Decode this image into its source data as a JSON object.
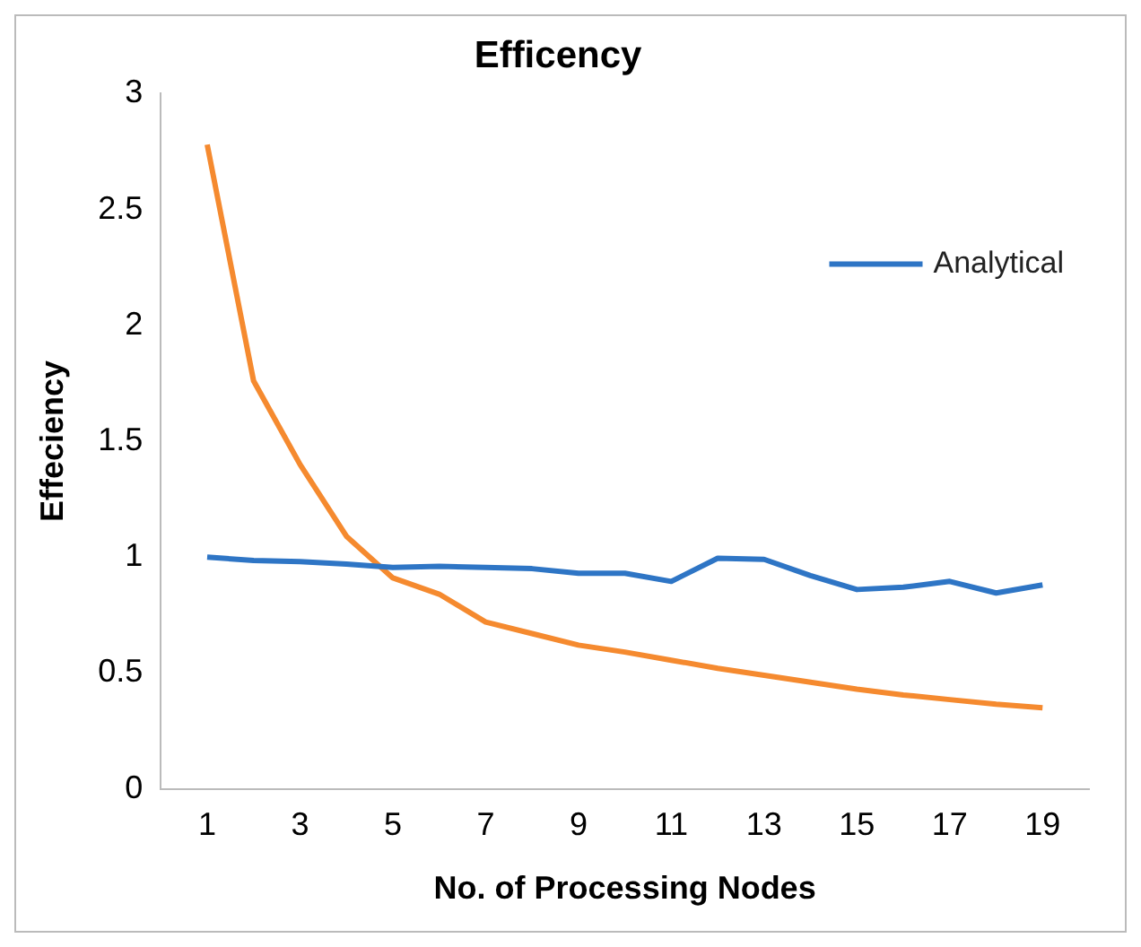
{
  "chart_data": {
    "type": "line",
    "title": "Efficency",
    "xlabel": "No. of Processing Nodes",
    "ylabel": "Effeciency",
    "x": [
      1,
      2,
      3,
      4,
      5,
      6,
      7,
      8,
      9,
      10,
      11,
      12,
      13,
      14,
      15,
      16,
      17,
      18,
      19
    ],
    "xlim": [
      0,
      20
    ],
    "xticks": [
      1,
      3,
      5,
      7,
      9,
      11,
      13,
      15,
      17,
      19
    ],
    "series": [
      {
        "name": "Analytical",
        "color": "#2e75c5",
        "values": [
          1.0,
          0.985,
          0.98,
          0.97,
          0.955,
          0.96,
          0.955,
          0.95,
          0.93,
          0.93,
          0.895,
          0.995,
          0.99,
          0.92,
          0.86,
          0.87,
          0.895,
          0.845,
          0.88
        ]
      },
      {
        "color": "#f58a2f",
        "values": [
          2.78,
          1.76,
          1.4,
          1.09,
          0.91,
          0.84,
          0.72,
          0.67,
          0.62,
          0.59,
          0.555,
          0.52,
          0.49,
          0.46,
          0.43,
          0.405,
          0.385,
          0.365,
          0.35
        ]
      }
    ],
    "ylim": [
      0,
      3
    ],
    "yticks": [
      0,
      0.5,
      1,
      1.5,
      2,
      2.5,
      3
    ],
    "grid": false,
    "legend": "top right",
    "marker": "none",
    "line_style": "solid"
  }
}
